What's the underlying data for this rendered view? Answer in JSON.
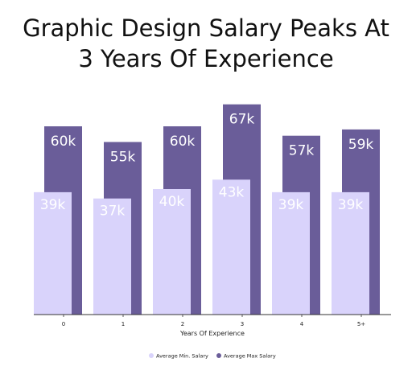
{
  "chart_data": {
    "type": "bar",
    "title_lines": [
      "Graphic Design Salary Peaks At",
      "3 Years Of Experience"
    ],
    "xlabel": "Years Of Experience",
    "ylabel": "",
    "categories": [
      "0",
      "1",
      "2",
      "3",
      "4",
      "5+"
    ],
    "ylim": [
      0,
      80
    ],
    "grid": false,
    "legend_position": "bottom",
    "series": [
      {
        "name": "Average Max Salary",
        "color": "#6a5d99",
        "values": [
          60,
          55,
          60,
          67,
          57,
          59
        ],
        "labels": [
          "60k",
          "55k",
          "60k",
          "67k",
          "57k",
          "59k"
        ]
      },
      {
        "name": "Average Min. Salary",
        "color": "#d9d3fb",
        "values": [
          39,
          37,
          40,
          43,
          39,
          39
        ],
        "labels": [
          "39k",
          "37k",
          "40k",
          "43k",
          "39k",
          "39k"
        ]
      }
    ]
  }
}
